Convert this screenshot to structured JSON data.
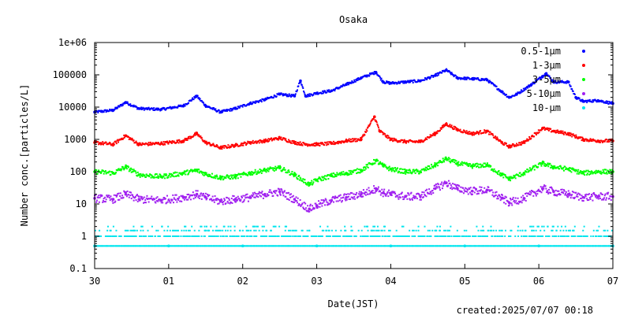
{
  "chart_data": {
    "type": "scatter",
    "title": "Osaka",
    "xlabel": "Date(JST)",
    "ylabel": "Number conc.[particles/L]",
    "footer": "created:2025/07/07 00:18",
    "y_scale": "log",
    "ylim": [
      0.1,
      1000000
    ],
    "y_ticks": [
      {
        "value": 1000000,
        "label": "1e+06"
      },
      {
        "value": 100000,
        "label": "100000"
      },
      {
        "value": 10000,
        "label": "10000"
      },
      {
        "value": 1000,
        "label": "1000"
      },
      {
        "value": 100,
        "label": "100"
      },
      {
        "value": 10,
        "label": "10"
      },
      {
        "value": 1,
        "label": "1"
      },
      {
        "value": 0.1,
        "label": "0.1"
      }
    ],
    "x_domain_days": [
      0,
      7
    ],
    "x_ticks": [
      {
        "value": 0,
        "label": "30"
      },
      {
        "value": 1,
        "label": "01"
      },
      {
        "value": 2,
        "label": "02"
      },
      {
        "value": 3,
        "label": "03"
      },
      {
        "value": 4,
        "label": "04"
      },
      {
        "value": 5,
        "label": "05"
      },
      {
        "value": 6,
        "label": "06"
      },
      {
        "value": 7,
        "label": "07"
      }
    ],
    "legend_position": "top-right",
    "grid": false,
    "series": [
      {
        "name": "0.5-1μm",
        "color": "#0000ff",
        "x": [
          0,
          0.25,
          0.42,
          0.6,
          0.9,
          1.2,
          1.38,
          1.5,
          1.7,
          1.9,
          2.1,
          2.3,
          2.5,
          2.7,
          2.78,
          2.85,
          3.0,
          3.2,
          3.4,
          3.6,
          3.8,
          3.9,
          4.0,
          4.2,
          4.4,
          4.6,
          4.75,
          4.9,
          5.1,
          5.3,
          5.5,
          5.6,
          5.7,
          5.9,
          6.05,
          6.1,
          6.2,
          6.4,
          6.5,
          6.6,
          6.8,
          7.0
        ],
        "values": [
          7000,
          8000,
          14000,
          9000,
          8500,
          11000,
          22000,
          11000,
          7000,
          9000,
          13000,
          17000,
          25000,
          22000,
          65000,
          22000,
          27000,
          32000,
          50000,
          80000,
          120000,
          60000,
          55000,
          60000,
          65000,
          95000,
          140000,
          80000,
          75000,
          70000,
          30000,
          20000,
          25000,
          50000,
          90000,
          110000,
          60000,
          60000,
          20000,
          15000,
          16000,
          13000
        ]
      },
      {
        "name": "1-3μm",
        "color": "#ff0000",
        "x": [
          0,
          0.25,
          0.42,
          0.6,
          0.9,
          1.2,
          1.38,
          1.5,
          1.7,
          1.9,
          2.1,
          2.3,
          2.5,
          2.7,
          2.85,
          3.0,
          3.2,
          3.4,
          3.6,
          3.78,
          3.85,
          4.0,
          4.2,
          4.4,
          4.6,
          4.75,
          4.9,
          5.1,
          5.3,
          5.5,
          5.6,
          5.8,
          6.05,
          6.2,
          6.4,
          6.6,
          6.8,
          7.0
        ],
        "values": [
          800,
          700,
          1300,
          700,
          750,
          900,
          1500,
          800,
          550,
          650,
          800,
          900,
          1100,
          800,
          700,
          700,
          750,
          900,
          1000,
          5000,
          1800,
          1000,
          850,
          850,
          1500,
          3000,
          2000,
          1500,
          1800,
          800,
          600,
          800,
          2200,
          1800,
          1500,
          1000,
          900,
          900
        ]
      },
      {
        "name": "3-5μm",
        "color": "#00ff00",
        "x": [
          0,
          0.25,
          0.42,
          0.6,
          0.9,
          1.2,
          1.38,
          1.5,
          1.7,
          1.9,
          2.1,
          2.3,
          2.5,
          2.7,
          2.9,
          3.0,
          3.2,
          3.4,
          3.6,
          3.8,
          3.9,
          4.0,
          4.2,
          4.4,
          4.6,
          4.75,
          4.9,
          5.1,
          5.3,
          5.5,
          5.6,
          5.8,
          6.05,
          6.2,
          6.4,
          6.6,
          6.8,
          7.0
        ],
        "values": [
          100,
          90,
          140,
          80,
          70,
          90,
          110,
          85,
          65,
          70,
          90,
          110,
          130,
          80,
          40,
          55,
          75,
          90,
          110,
          220,
          150,
          120,
          100,
          100,
          160,
          250,
          180,
          150,
          160,
          80,
          60,
          90,
          180,
          140,
          120,
          90,
          100,
          100
        ]
      },
      {
        "name": "5-10μm",
        "color": "#a020f0",
        "x": [
          0,
          0.25,
          0.42,
          0.6,
          0.9,
          1.2,
          1.38,
          1.5,
          1.7,
          1.9,
          2.1,
          2.3,
          2.5,
          2.7,
          2.9,
          3.0,
          3.2,
          3.4,
          3.6,
          3.8,
          3.9,
          4.0,
          4.2,
          4.4,
          4.6,
          4.75,
          4.9,
          5.1,
          5.3,
          5.5,
          5.6,
          5.8,
          6.05,
          6.2,
          6.4,
          6.6,
          6.8,
          7.0
        ],
        "values": [
          15,
          14,
          20,
          14,
          13,
          16,
          20,
          16,
          12,
          14,
          16,
          20,
          24,
          14,
          7,
          9,
          13,
          16,
          20,
          30,
          22,
          20,
          17,
          17,
          30,
          45,
          30,
          25,
          27,
          15,
          11,
          15,
          30,
          24,
          20,
          16,
          17,
          17
        ]
      },
      {
        "name": "10-μm",
        "color": "#00e5ee",
        "x": [
          0,
          1,
          2,
          3,
          4,
          5,
          6,
          7
        ],
        "values": [
          0.5,
          0.5,
          0.5,
          0.5,
          0.5,
          0.5,
          0.5,
          0.5
        ]
      }
    ]
  }
}
